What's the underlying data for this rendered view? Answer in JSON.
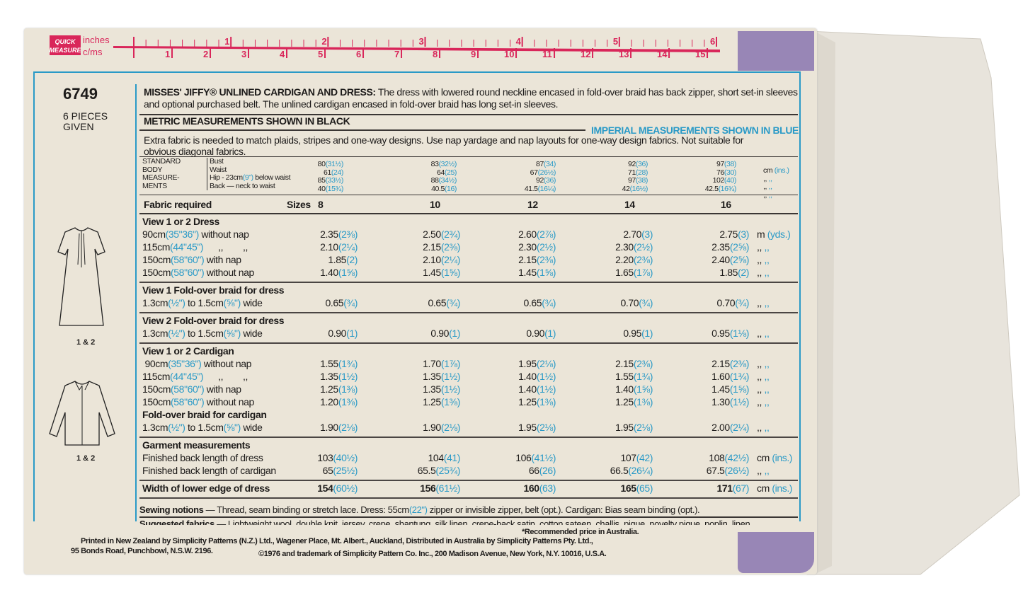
{
  "ruler": {
    "brand": "QUICK MEASURE",
    "inches_label": "inches",
    "cm_label": "c/ms",
    "inch_marks": [
      "1",
      "2",
      "3",
      "4",
      "5",
      "6"
    ],
    "cm_marks": [
      "1",
      "2",
      "3",
      "4",
      "5",
      "6",
      "7",
      "8",
      "9",
      "10",
      "11",
      "12",
      "13",
      "14",
      "15"
    ],
    "color": "#d9265a"
  },
  "pattern": {
    "number": "6749",
    "pieces": "6 PIECES GIVEN",
    "view_label_dress": "1 & 2",
    "view_label_cardigan": "1 & 2"
  },
  "header": {
    "title": "MISSES' JIFFY® UNLINED CARDIGAN AND DRESS:",
    "description": " The dress with lowered round neckline encased in fold-over braid has back zipper, short set-in sleeves and optional purchased belt. The unlined cardigan encased in fold-over braid has long set-in sleeves.",
    "metric": "METRIC MEASUREMENTS SHOWN IN BLACK",
    "imperial": "IMPERIAL MEASUREMENTS SHOWN IN BLUE",
    "note": "Extra fabric is needed to match plaids, stripes and one-way designs. Use nap yardage and nap layouts for one-way design fabrics. Not suitable for obvious diagonal fabrics."
  },
  "body_measurements": {
    "label": [
      "STANDARD",
      "BODY",
      "MEASURE-",
      "MENTS"
    ],
    "rows": [
      [
        "Bust",
        ""
      ],
      [
        "Waist",
        ""
      ],
      [
        "Hip - 23cm",
        "(9\")",
        " below waist"
      ],
      [
        "Back — neck to waist",
        ""
      ]
    ],
    "sizes": [
      [
        [
          "80",
          "(31½)"
        ],
        [
          "61",
          "(24)"
        ],
        [
          "85",
          "(33½)"
        ],
        [
          "40",
          "(15¾)"
        ]
      ],
      [
        [
          "83",
          "(32½)"
        ],
        [
          "64",
          "(25)"
        ],
        [
          "88",
          "(34½)"
        ],
        [
          "40.5",
          "(16)"
        ]
      ],
      [
        [
          "87",
          "(34)"
        ],
        [
          "67",
          "(26½)"
        ],
        [
          "92",
          "(36)"
        ],
        [
          "41.5",
          "(16¼)"
        ]
      ],
      [
        [
          "92",
          "(36)"
        ],
        [
          "71",
          "(28)"
        ],
        [
          "97",
          "(38)"
        ],
        [
          "42",
          "(16½)"
        ]
      ],
      [
        [
          "97",
          "(38)"
        ],
        [
          "76",
          "(30)"
        ],
        [
          "102",
          "(40)"
        ],
        [
          "42.5",
          "(16¾)"
        ]
      ]
    ],
    "units": [
      [
        "cm",
        "(ins.)"
      ],
      [
        ",,",
        ",,"
      ],
      [
        ",,",
        ",,"
      ],
      [
        ",,",
        ",,"
      ]
    ]
  },
  "sizes_header": {
    "label": "Fabric required",
    "sizes_label": "Sizes",
    "sizes": [
      "8",
      "10",
      "12",
      "14",
      "16"
    ]
  },
  "fabric": [
    {
      "title": "View 1 or 2   Dress",
      "rows": [
        {
          "label": [
            [
              "90cm",
              0
            ],
            [
              "(35\"36\")",
              1
            ],
            [
              " without nap",
              0
            ]
          ],
          "values": [
            [
              "2.35",
              "(2⅜)"
            ],
            [
              "2.50",
              "(2¾)"
            ],
            [
              "2.60",
              "(2⅞)"
            ],
            [
              "2.70",
              "(3)"
            ],
            [
              "2.75",
              "(3)"
            ]
          ],
          "unit": [
            "m",
            "(yds.)"
          ]
        },
        {
          "label": [
            [
              "115cm",
              0
            ],
            [
              "(44\"45\")",
              1
            ],
            [
              "      ,,        ,,",
              0
            ]
          ],
          "values": [
            [
              "2.10",
              "(2¼)"
            ],
            [
              "2.15",
              "(2⅜)"
            ],
            [
              "2.30",
              "(2½)"
            ],
            [
              "2.30",
              "(2½)"
            ],
            [
              "2.35",
              "(2⅝)"
            ]
          ],
          "unit": [
            ",,",
            ",,"
          ]
        },
        {
          "label": [
            [
              "150cm",
              0
            ],
            [
              "(58\"60\")",
              1
            ],
            [
              " with nap",
              0
            ]
          ],
          "values": [
            [
              "1.85",
              "(2)"
            ],
            [
              "2.10",
              "(2¼)"
            ],
            [
              "2.15",
              "(2⅜)"
            ],
            [
              "2.20",
              "(2⅜)"
            ],
            [
              "2.40",
              "(2⅝)"
            ]
          ],
          "unit": [
            ",,",
            ",,"
          ]
        },
        {
          "label": [
            [
              "150cm",
              0
            ],
            [
              "(58\"60\")",
              1
            ],
            [
              " without nap",
              0
            ]
          ],
          "values": [
            [
              "1.40",
              "(1⅝)"
            ],
            [
              "1.45",
              "(1⅝)"
            ],
            [
              "1.45",
              "(1⅝)"
            ],
            [
              "1.65",
              "(1⅞)"
            ],
            [
              "1.85",
              "(2)"
            ]
          ],
          "unit": [
            ",,",
            ",,"
          ]
        }
      ]
    },
    {
      "title": "View 1   Fold-over braid for dress",
      "rows": [
        {
          "label": [
            [
              "1.3cm",
              0
            ],
            [
              "(½\")",
              1
            ],
            [
              " to 1.5cm",
              0
            ],
            [
              "(⅝\")",
              1
            ],
            [
              " wide",
              0
            ]
          ],
          "values": [
            [
              "0.65",
              "(¾)"
            ],
            [
              "0.65",
              "(¾)"
            ],
            [
              "0.65",
              "(¾)"
            ],
            [
              "0.70",
              "(¾)"
            ],
            [
              "0.70",
              "(¾)"
            ]
          ],
          "unit": [
            ",,",
            ",,"
          ]
        }
      ]
    },
    {
      "title": "View 2   Fold-over braid for dress",
      "rows": [
        {
          "label": [
            [
              "1.3cm",
              0
            ],
            [
              "(½\")",
              1
            ],
            [
              " to 1.5cm",
              0
            ],
            [
              "(⅝\")",
              1
            ],
            [
              " wide",
              0
            ]
          ],
          "values": [
            [
              "0.90",
              "(1)"
            ],
            [
              "0.90",
              "(1)"
            ],
            [
              "0.90",
              "(1)"
            ],
            [
              "0.95",
              "(1)"
            ],
            [
              "0.95",
              "(1⅛)"
            ]
          ],
          "unit": [
            ",,",
            ",,"
          ]
        }
      ]
    },
    {
      "title": "View 1 or 2   Cardigan",
      "rows": [
        {
          "label": [
            [
              " 90cm",
              0
            ],
            [
              "(35\"36\")",
              1
            ],
            [
              " without nap",
              0
            ]
          ],
          "values": [
            [
              "1.55",
              "(1¾)"
            ],
            [
              "1.70",
              "(1⅞)"
            ],
            [
              "1.95",
              "(2⅛)"
            ],
            [
              "2.15",
              "(2⅜)"
            ],
            [
              "2.15",
              "(2⅜)"
            ]
          ],
          "unit": [
            ",,",
            ",,"
          ]
        },
        {
          "label": [
            [
              "115cm",
              0
            ],
            [
              "(44\"45\")",
              1
            ],
            [
              "      ,,        ,,",
              0
            ]
          ],
          "values": [
            [
              "1.35",
              "(1½)"
            ],
            [
              "1.35",
              "(1½)"
            ],
            [
              "1.40",
              "(1½)"
            ],
            [
              "1.55",
              "(1¾)"
            ],
            [
              "1.60",
              "(1¾)"
            ]
          ],
          "unit": [
            ",,",
            ",,"
          ]
        },
        {
          "label": [
            [
              "150cm",
              0
            ],
            [
              "(58\"60\")",
              1
            ],
            [
              " with nap",
              0
            ]
          ],
          "values": [
            [
              "1.25",
              "(1⅜)"
            ],
            [
              "1.35",
              "(1½)"
            ],
            [
              "1.40",
              "(1½)"
            ],
            [
              "1.40",
              "(1⅝)"
            ],
            [
              "1.45",
              "(1⅝)"
            ]
          ],
          "unit": [
            ",,",
            ",,"
          ]
        },
        {
          "label": [
            [
              "150cm",
              0
            ],
            [
              "(58\"60\")",
              1
            ],
            [
              " without nap",
              0
            ]
          ],
          "values": [
            [
              "1.20",
              "(1⅜)"
            ],
            [
              "1.25",
              "(1⅜)"
            ],
            [
              "1.25",
              "(1⅜)"
            ],
            [
              "1.25",
              "(1⅜)"
            ],
            [
              "1.30",
              "(1½)"
            ]
          ],
          "unit": [
            ",,",
            ",,"
          ]
        },
        {
          "heading": "Fold-over braid for cardigan"
        },
        {
          "label": [
            [
              "1.3cm",
              0
            ],
            [
              "(½\")",
              1
            ],
            [
              " to 1.5cm",
              0
            ],
            [
              "(⅝\")",
              1
            ],
            [
              " wide",
              0
            ]
          ],
          "values": [
            [
              "1.90",
              "(2⅛)"
            ],
            [
              "1.90",
              "(2⅛)"
            ],
            [
              "1.95",
              "(2⅛)"
            ],
            [
              "1.95",
              "(2⅛)"
            ],
            [
              "2.00",
              "(2¼)"
            ]
          ],
          "unit": [
            ",,",
            ",,"
          ]
        }
      ]
    },
    {
      "title": "Garment  measurements",
      "rows": [
        {
          "label": [
            [
              "Finished back length of dress",
              0
            ]
          ],
          "values": [
            [
              "103",
              "(40½)"
            ],
            [
              "104",
              "(41)"
            ],
            [
              "106",
              "(41½)"
            ],
            [
              "107",
              "(42)"
            ],
            [
              "108",
              "(42½)"
            ]
          ],
          "unit": [
            "cm",
            "(ins.)"
          ]
        },
        {
          "label": [
            [
              "Finished back length of cardigan",
              0
            ]
          ],
          "values": [
            [
              "65",
              "(25½)"
            ],
            [
              "65.5",
              "(25¾)"
            ],
            [
              "66",
              "(26)"
            ],
            [
              "66.5",
              "(26¼)"
            ],
            [
              "67.5",
              "(26½)"
            ]
          ],
          "unit": [
            ",,",
            ",,"
          ]
        }
      ]
    },
    {
      "bold_row": true,
      "rows": [
        {
          "label": [
            [
              "Width of lower edge of dress",
              0
            ]
          ],
          "bold": true,
          "values": [
            [
              "154",
              "(60½)"
            ],
            [
              "156",
              "(61½)"
            ],
            [
              "160",
              "(63)"
            ],
            [
              "165",
              "(65)"
            ],
            [
              "171",
              "(67)"
            ]
          ],
          "unit": [
            "cm",
            "(ins.)"
          ]
        }
      ]
    }
  ],
  "notions": {
    "label": "Sewing notions",
    "text1": " — Thread, seam binding or stretch lace. Dress: 55cm",
    "blue": "(22\")",
    "text2": " zipper or invisible zipper, belt (opt.). Cardigan: Bias seam binding (opt.)."
  },
  "suggested": {
    "label": "Suggested fabrics",
    "text": " — Lightweight wool, double knit, jersey, crepe, shantung, silk linen, crepe-back satin, cotton sateen, challis, pique, novelty pique, poplin, linen."
  },
  "footer": {
    "printed": "Printed in New Zealand by Simplicity Patterns (N.Z.) Ltd., Wagener Place, Mt. Albert., Auckland, Distributed in Australia by Simplicity Patterns Pty. Ltd.,",
    "address": "95 Bonds Road, Punchbowl, N.S.W. 2196.",
    "copyright": "©1976 and trademark of Simplicity Pattern Co. Inc., 200 Madison Avenue, New York, N.Y. 10016, U.S.A.",
    "price": "*Recommended price in Australia."
  },
  "colors": {
    "paper": "#ebe5d8",
    "blue": "#2a9ac7",
    "ruler": "#d9265a",
    "tape": "#8a76b0"
  }
}
